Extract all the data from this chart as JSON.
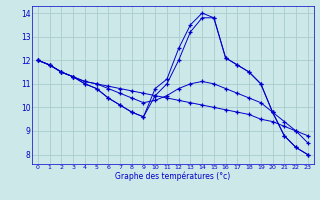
{
  "xlabel": "Graphe des températures (°c)",
  "bg_color": "#cce8e8",
  "grid_color": "#aacccc",
  "line_color": "#0000cc",
  "xlim": [
    -0.5,
    23.5
  ],
  "ylim": [
    7.6,
    14.3
  ],
  "xticks": [
    0,
    1,
    2,
    3,
    4,
    5,
    6,
    7,
    8,
    9,
    10,
    11,
    12,
    13,
    14,
    15,
    16,
    17,
    18,
    19,
    20,
    21,
    22,
    23
  ],
  "yticks": [
    8,
    9,
    10,
    11,
    12,
    13,
    14
  ],
  "line1_x": [
    0,
    1,
    2,
    3,
    4,
    5,
    6,
    7,
    8,
    9,
    10,
    11,
    12,
    13,
    14,
    15,
    16,
    17,
    18,
    19,
    20,
    21,
    22,
    23
  ],
  "line1_y": [
    12.0,
    11.8,
    11.5,
    11.3,
    11.1,
    11.0,
    10.9,
    10.8,
    10.7,
    10.6,
    10.5,
    10.4,
    10.3,
    10.2,
    10.1,
    10.0,
    9.9,
    9.8,
    9.7,
    9.5,
    9.4,
    9.2,
    9.0,
    8.8
  ],
  "line2_x": [
    0,
    1,
    2,
    3,
    4,
    5,
    6,
    7,
    8,
    9,
    10,
    11,
    12,
    13,
    14,
    15,
    16,
    17,
    18,
    19,
    20,
    21,
    22,
    23
  ],
  "line2_y": [
    12.0,
    11.8,
    11.5,
    11.3,
    11.1,
    11.0,
    10.8,
    10.6,
    10.4,
    10.2,
    10.3,
    10.5,
    10.8,
    11.0,
    11.1,
    11.0,
    10.8,
    10.6,
    10.4,
    10.2,
    9.8,
    9.4,
    9.0,
    8.5
  ],
  "line3_x": [
    0,
    1,
    2,
    3,
    4,
    5,
    6,
    7,
    8,
    9,
    10,
    11,
    12,
    13,
    14,
    15,
    16,
    17,
    18,
    19,
    20,
    21,
    22,
    23
  ],
  "line3_y": [
    12.0,
    11.8,
    11.5,
    11.3,
    11.0,
    10.8,
    10.4,
    10.1,
    9.8,
    9.6,
    10.5,
    11.0,
    12.0,
    13.2,
    13.8,
    13.8,
    12.1,
    11.8,
    11.5,
    11.0,
    9.8,
    8.8,
    8.3,
    8.0
  ],
  "line4_x": [
    0,
    1,
    2,
    3,
    4,
    5,
    6,
    7,
    8,
    9,
    10,
    11,
    12,
    13,
    14,
    15,
    16,
    17,
    18,
    19,
    20,
    21,
    22,
    23
  ],
  "line4_y": [
    12.0,
    11.8,
    11.5,
    11.3,
    11.0,
    10.8,
    10.4,
    10.1,
    9.8,
    9.6,
    10.8,
    11.2,
    12.5,
    13.5,
    14.0,
    13.8,
    12.1,
    11.8,
    11.5,
    11.0,
    9.8,
    8.8,
    8.3,
    8.0
  ]
}
